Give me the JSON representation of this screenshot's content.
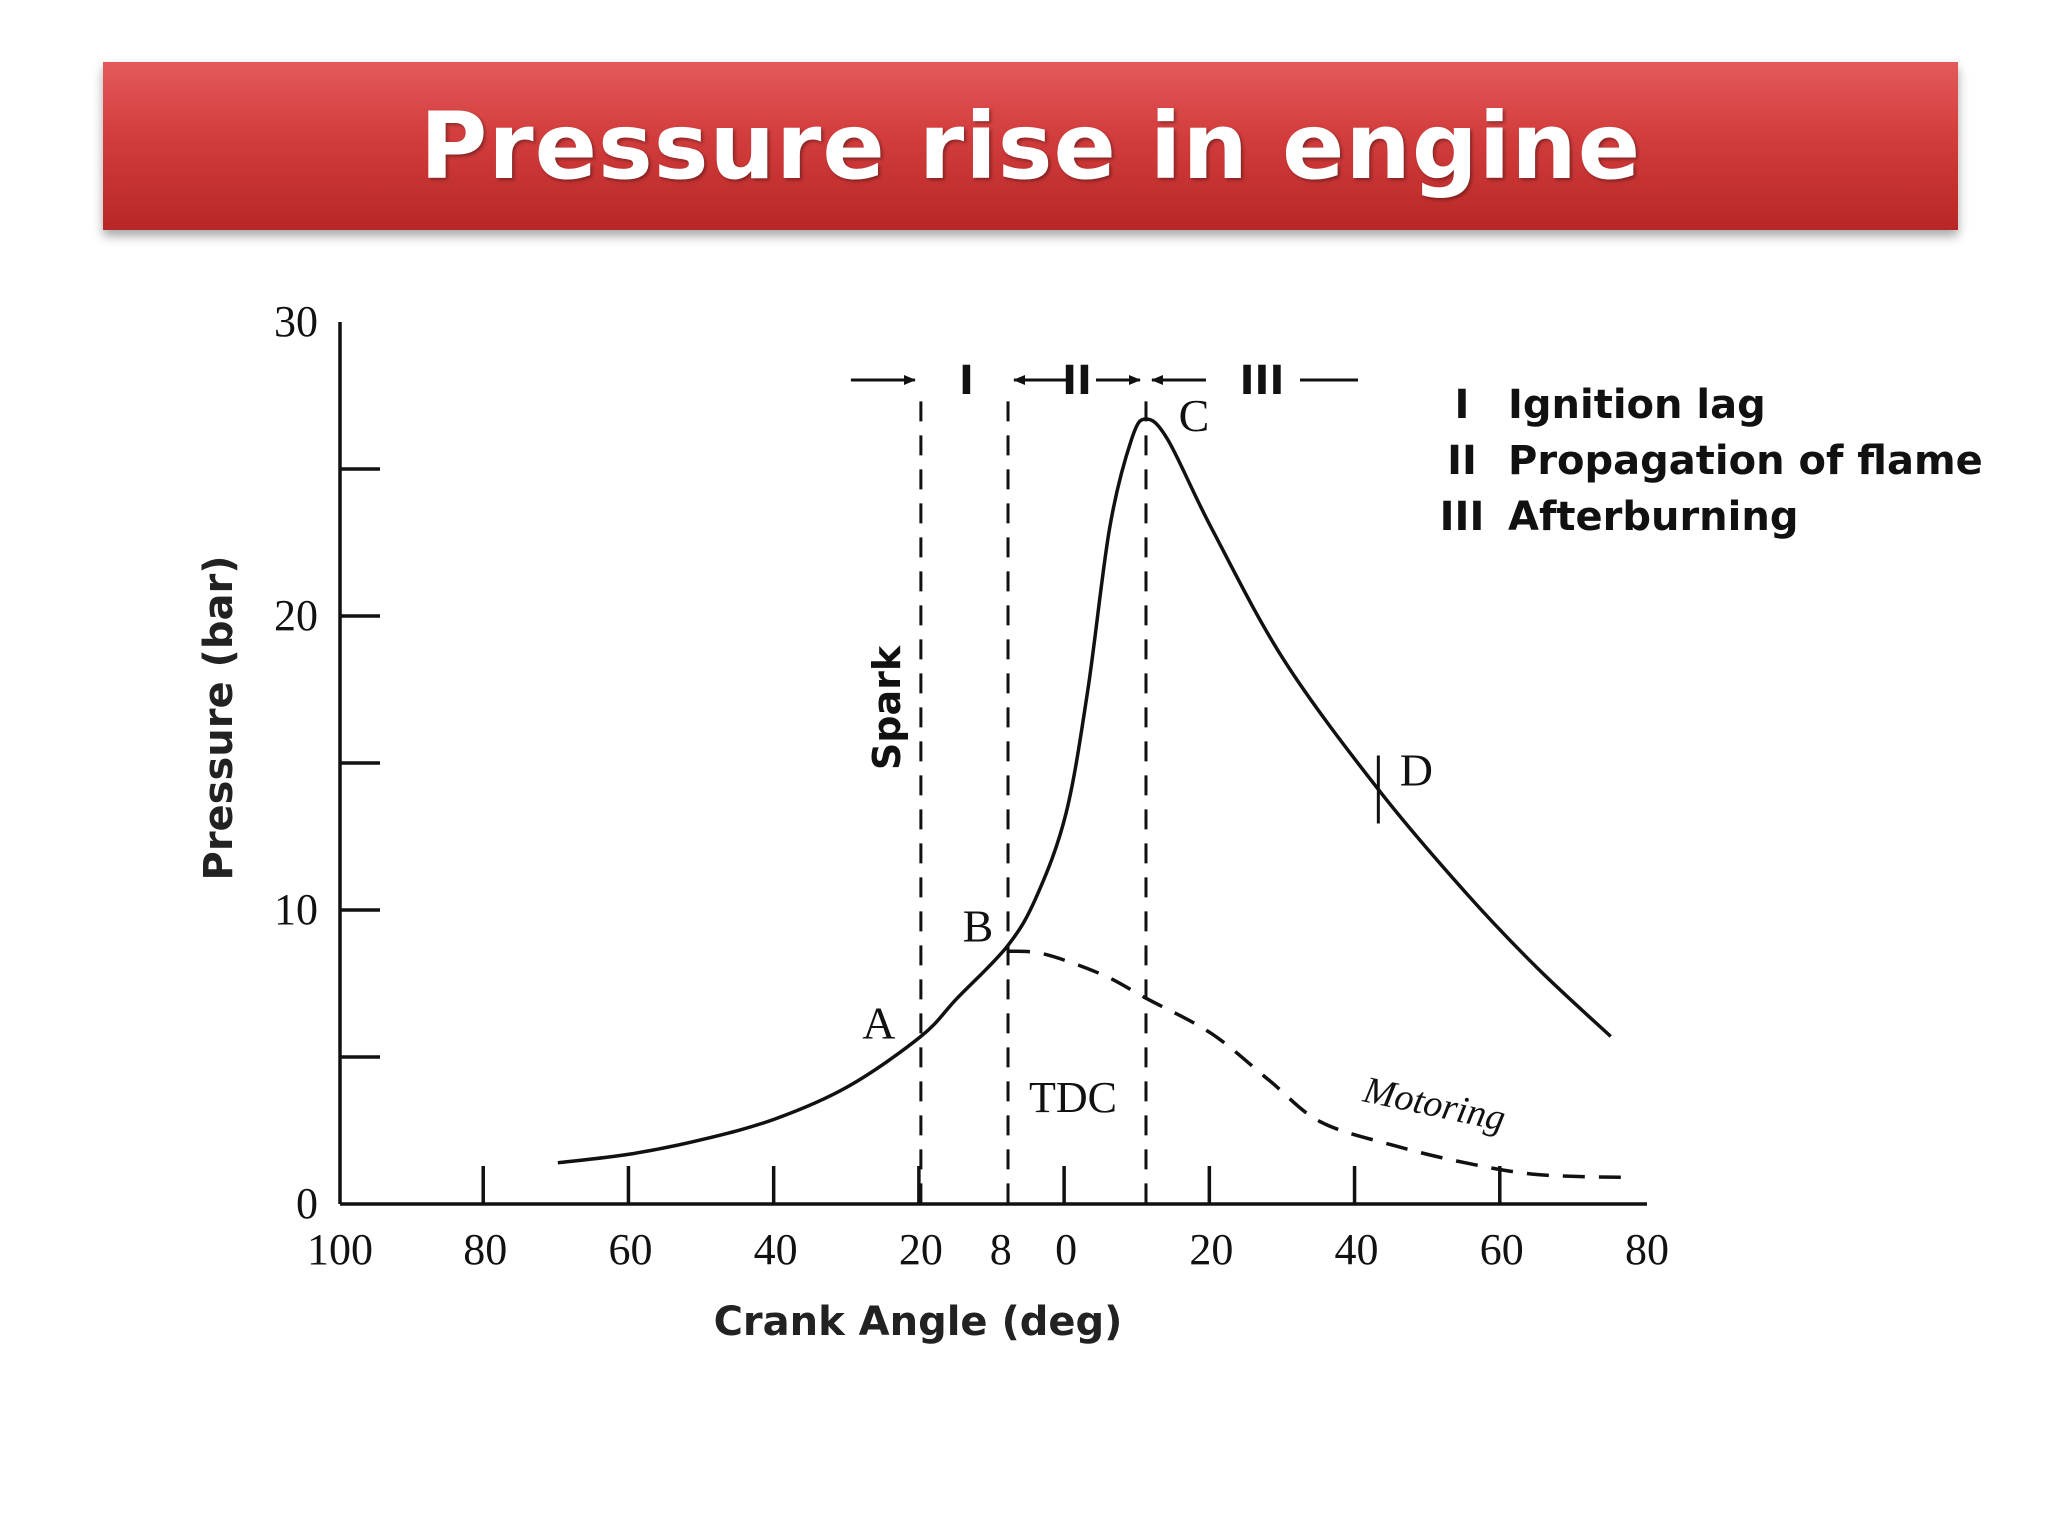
{
  "slide": {
    "title": "Pressure rise in engine"
  },
  "chart_data": {
    "type": "line",
    "xlabel": "Crank Angle (deg)",
    "ylabel": "Pressure (bar)",
    "x_tick_labels": [
      "100",
      "80",
      "60",
      "40",
      "20",
      "8",
      "0",
      "20",
      "40",
      "60",
      "80"
    ],
    "y_tick_labels": [
      "30",
      "20",
      "10",
      "0"
    ],
    "ylim": [
      0,
      30
    ],
    "grid": false,
    "series": [
      {
        "name": "",
        "style": "solid",
        "points": [
          [
            -70,
            1.4
          ],
          [
            -60,
            1.7
          ],
          [
            -50,
            2.2
          ],
          [
            -40,
            2.9
          ],
          [
            -30,
            4.0
          ],
          [
            -20,
            5.7
          ],
          [
            -15,
            7.0
          ],
          [
            -8,
            8.8
          ],
          [
            -4,
            10.5
          ],
          [
            0,
            13.3
          ],
          [
            3,
            17.5
          ],
          [
            6,
            23.0
          ],
          [
            9,
            26.0
          ],
          [
            11,
            26.7
          ],
          [
            14,
            26.0
          ],
          [
            20,
            23.0
          ],
          [
            30,
            18.5
          ],
          [
            43,
            14.1
          ],
          [
            55,
            10.6
          ],
          [
            65,
            8.0
          ],
          [
            75,
            5.7
          ]
        ]
      },
      {
        "name": "Motoring",
        "style": "dashed",
        "points": [
          [
            -8,
            8.6
          ],
          [
            -3,
            8.5
          ],
          [
            5,
            7.8
          ],
          [
            11,
            7.0
          ],
          [
            20,
            5.8
          ],
          [
            28,
            4.2
          ],
          [
            35,
            2.8
          ],
          [
            45,
            2.0
          ],
          [
            55,
            1.4
          ],
          [
            65,
            1.0
          ],
          [
            78,
            0.9
          ]
        ]
      }
    ],
    "vertical_lines": [
      {
        "x": -20,
        "label": "Spark"
      },
      {
        "x": -8,
        "label": ""
      },
      {
        "x": 11,
        "label": ""
      }
    ],
    "point_labels": [
      {
        "label": "A",
        "x": -20,
        "y": 5.7
      },
      {
        "label": "B",
        "x": -8,
        "y": 8.8
      },
      {
        "label": "C",
        "x": 11,
        "y": 26.7
      },
      {
        "label": "D",
        "x": 43,
        "y": 14.1
      }
    ],
    "tdc_label": "TDC",
    "phase_labels": [
      "I",
      "II",
      "III"
    ],
    "legend": [
      {
        "key": "I",
        "text": "Ignition lag"
      },
      {
        "key": "II",
        "text": "Propagation of flame"
      },
      {
        "key": "III",
        "text": "Afterburning"
      }
    ],
    "legend_position": "top-right"
  }
}
